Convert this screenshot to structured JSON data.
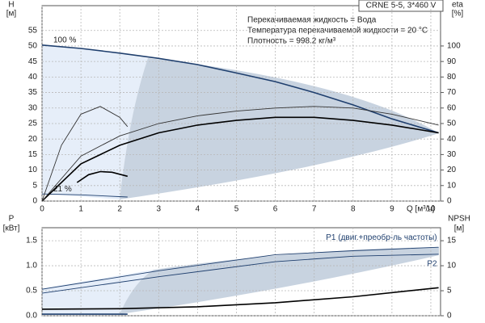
{
  "chart_data": [
    {
      "type": "line",
      "title": "CRNE 5-5, 3*460 V",
      "annotations": [
        "Перекачиваемая жидкость = Вода",
        "Температура перекачиваемой жидкости = 20 °C",
        "Плотность = 998.2 кг/м³"
      ],
      "ylabel": "H",
      "ylabel_unit": "[м]",
      "y2label": "eta",
      "y2label_unit": "[%]",
      "xlabel": "Q [м³/ч]",
      "xlim": [
        0,
        10.25
      ],
      "xticks": [
        0,
        1,
        2,
        3,
        4,
        5,
        6,
        7,
        8,
        9,
        10
      ],
      "ylim": [
        0,
        63
      ],
      "yticks": [
        0,
        5,
        10,
        15,
        20,
        25,
        30,
        35,
        40,
        45,
        50,
        55
      ],
      "y2lim": [
        0,
        126
      ],
      "y2ticks": [
        0,
        10,
        20,
        30,
        40,
        50,
        60,
        70,
        80,
        90,
        100
      ],
      "grid": true,
      "series": [
        {
          "name": "100 %",
          "color": "#1f3f6e",
          "x": [
            0,
            1,
            2,
            3,
            4,
            5,
            6,
            7,
            8,
            9,
            10.2
          ],
          "values": [
            50.3,
            49.2,
            47.7,
            46,
            44,
            41.3,
            38.5,
            35,
            31,
            26.5,
            22
          ]
        },
        {
          "name": "21 %",
          "color": "#1f3f6e",
          "x": [
            0,
            1,
            2.2
          ],
          "values": [
            2.3,
            2,
            1.3
          ]
        },
        {
          "color": "#000000",
          "axis": "y2",
          "x": [
            0,
            1,
            2,
            3,
            4,
            5,
            6,
            7,
            8,
            9,
            10.2
          ],
          "values": [
            0,
            24,
            36,
            44,
            49,
            52,
            54,
            54,
            52,
            49,
            44
          ]
        },
        {
          "color": "#333333",
          "axis": "y2",
          "x": [
            0,
            1,
            2,
            3,
            4,
            5,
            6,
            7,
            8,
            9,
            10.2
          ],
          "values": [
            0,
            29,
            42,
            50,
            55,
            58,
            60,
            61,
            60,
            56,
            49
          ]
        },
        {
          "color": "#333333",
          "axis": "y2",
          "x": [
            0,
            0.5,
            1,
            1.5,
            2,
            2.2
          ],
          "values": [
            0,
            36,
            56,
            61,
            54,
            48
          ]
        },
        {
          "color": "#000000",
          "axis": "y2",
          "x": [
            0.9,
            1.2,
            1.5,
            1.8,
            2.2
          ],
          "values": [
            12,
            17,
            19,
            18.6,
            16
          ]
        }
      ]
    },
    {
      "type": "line",
      "ylabel": "P",
      "ylabel_unit": "[кВт]",
      "y2label": "NPSH",
      "y2label_unit": "[м]",
      "xlim": [
        0,
        10.25
      ],
      "xticks": [
        0,
        1,
        2,
        3,
        4,
        5,
        6,
        7,
        8,
        9,
        10
      ],
      "ylim": [
        0,
        1.76
      ],
      "yticks": [
        {
          "value": 0,
          "label": "0.0"
        },
        0.5,
        {
          "value": 1,
          "label": "1.0"
        },
        1.5
      ],
      "y2lim": [
        0,
        17.6
      ],
      "y2ticks": [
        0,
        5,
        10,
        15
      ],
      "grid": true,
      "series": [
        {
          "name": "P1 (двиг.+преобр-ль частоты)",
          "color": "#1f3f6e",
          "x": [
            0,
            3,
            6,
            8,
            10.2
          ],
          "values": [
            0.53,
            0.9,
            1.22,
            1.3,
            1.37
          ]
        },
        {
          "name": "P2",
          "color": "#1f3f6e",
          "x": [
            0,
            3,
            6,
            8,
            10.2
          ],
          "values": [
            0.45,
            0.78,
            1.08,
            1.19,
            1.23
          ]
        },
        {
          "color": "#000000",
          "axis": "y2",
          "x": [
            0,
            2,
            4,
            6,
            8,
            10.2
          ],
          "values": [
            1.3,
            1.4,
            1.8,
            2.6,
            3.8,
            5.6
          ]
        },
        {
          "color": "#1f3f6e",
          "x": [
            0,
            2.2
          ],
          "values": [
            0.03,
            0.03
          ]
        }
      ]
    }
  ]
}
